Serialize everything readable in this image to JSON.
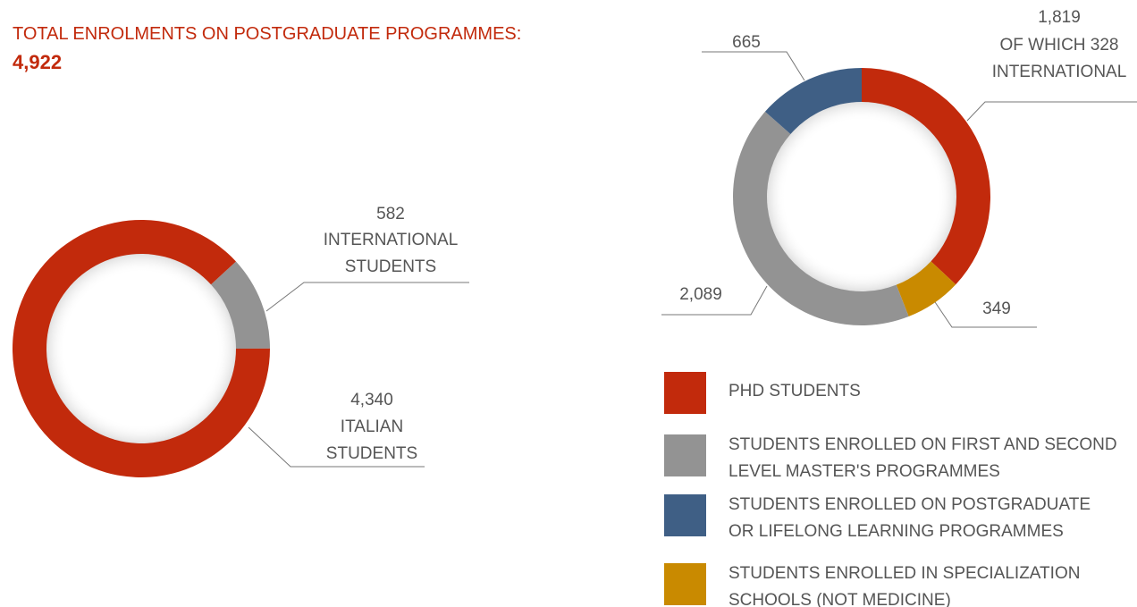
{
  "chart_data": [
    {
      "type": "donut",
      "title": "TOTAL ENROLMENTS ON POSTGRADUATE PROGRAMMES:",
      "subtitle": "4,922",
      "categories": [
        "INTERNATIONAL STUDENTS",
        "ITALIAN STUDENTS"
      ],
      "values": [
        582,
        4340
      ],
      "value_labels": [
        "582",
        "4,340"
      ],
      "colors": [
        "#939393",
        "#c22a0c"
      ]
    },
    {
      "type": "donut",
      "categories": [
        "PHD STUDENTS",
        "STUDENTS ENROLLED IN SPECIALIZATION SCHOOLS (NOT MEDICINE)",
        "STUDENTS ENROLLED ON FIRST AND SECOND LEVEL MASTER'S PROGRAMMES",
        "STUDENTS ENROLLED ON POSTGRADUATE OR LIFELONG LEARNING PROGRAMMES"
      ],
      "values": [
        1819,
        349,
        2089,
        665
      ],
      "value_labels": [
        "1,819",
        "349",
        "2,089",
        "665"
      ],
      "colors": [
        "#c22a0c",
        "#c98a00",
        "#939393",
        "#3f5f85"
      ],
      "annotation": "OF WHICH 328 INTERNATIONAL",
      "legend": true
    }
  ]
}
